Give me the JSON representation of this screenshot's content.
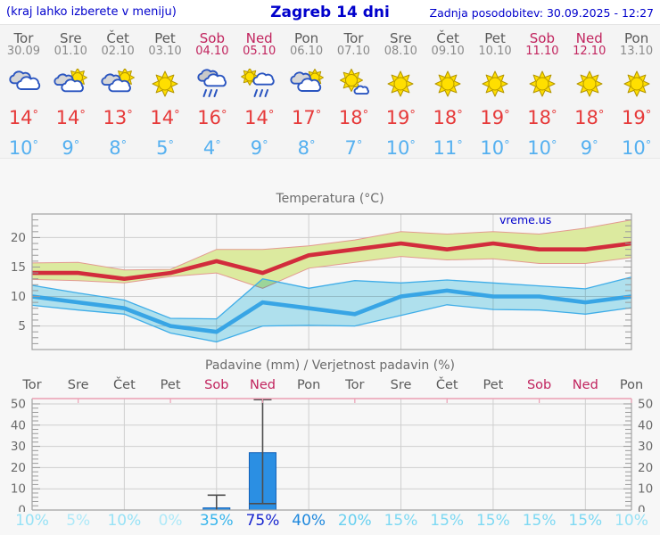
{
  "header": {
    "hint": "(kraj lahko izberete v meniju)",
    "title": "Zagreb 14 dni",
    "updated": "Zadnja posodobitev: 30.09.2025 - 12:27"
  },
  "colors": {
    "accent_blue": "#0000cc",
    "weekend": "#c1245e",
    "weekday": "#5a5a5a",
    "high_temp": "#e63a3a",
    "low_temp": "#55b0f0",
    "bar_fill": "#2b8fe3",
    "bar_edge": "#1260b8",
    "grid": "#cfcfcf",
    "frame": "#a3a3a3",
    "precip_top_border": "#eb9fb4"
  },
  "days": [
    {
      "name": "Tor",
      "date": "30.09",
      "weekend": false,
      "icon": "cloudy",
      "high": 14,
      "low": 10,
      "pop": "10%",
      "pop_color": "#97e2f6"
    },
    {
      "name": "Sre",
      "date": "01.10",
      "weekend": false,
      "icon": "sun-cloud",
      "high": 14,
      "low": 9,
      "pop": "5%",
      "pop_color": "#aee9f8"
    },
    {
      "name": "Čet",
      "date": "02.10",
      "weekend": false,
      "icon": "sun-cloud",
      "high": 13,
      "low": 8,
      "pop": "10%",
      "pop_color": "#97e2f6"
    },
    {
      "name": "Pet",
      "date": "03.10",
      "weekend": false,
      "icon": "sunny",
      "high": 14,
      "low": 5,
      "pop": "0%",
      "pop_color": "#aee9f8"
    },
    {
      "name": "Sob",
      "date": "04.10",
      "weekend": true,
      "icon": "rain",
      "high": 16,
      "low": 4,
      "pop": "35%",
      "pop_color": "#38b5ec"
    },
    {
      "name": "Ned",
      "date": "05.10",
      "weekend": true,
      "icon": "sun-rain",
      "high": 14,
      "low": 9,
      "pop": "75%",
      "pop_color": "#1826cf"
    },
    {
      "name": "Pon",
      "date": "06.10",
      "weekend": false,
      "icon": "clouds-sun",
      "high": 17,
      "low": 8,
      "pop": "40%",
      "pop_color": "#1e88dd"
    },
    {
      "name": "Tor",
      "date": "07.10",
      "weekend": false,
      "icon": "sun-small-cloud",
      "high": 18,
      "low": 7,
      "pop": "20%",
      "pop_color": "#68d0f0"
    },
    {
      "name": "Sre",
      "date": "08.10",
      "weekend": false,
      "icon": "sunny",
      "high": 19,
      "low": 10,
      "pop": "15%",
      "pop_color": "#7ed9f3"
    },
    {
      "name": "Čet",
      "date": "09.10",
      "weekend": false,
      "icon": "sunny",
      "high": 18,
      "low": 11,
      "pop": "15%",
      "pop_color": "#7ed9f3"
    },
    {
      "name": "Pet",
      "date": "10.10",
      "weekend": false,
      "icon": "sunny",
      "high": 19,
      "low": 10,
      "pop": "15%",
      "pop_color": "#7ed9f3"
    },
    {
      "name": "Sob",
      "date": "11.10",
      "weekend": true,
      "icon": "sunny",
      "high": 18,
      "low": 10,
      "pop": "15%",
      "pop_color": "#7ed9f3"
    },
    {
      "name": "Ned",
      "date": "12.10",
      "weekend": true,
      "icon": "sunny",
      "high": 18,
      "low": 9,
      "pop": "15%",
      "pop_color": "#7ed9f3"
    },
    {
      "name": "Pon",
      "date": "13.10",
      "weekend": false,
      "icon": "sunny",
      "high": 19,
      "low": 10,
      "pop": "10%",
      "pop_color": "#97e2f6"
    }
  ],
  "chart_data": [
    {
      "type": "line",
      "title": "Temperatura (°C)",
      "watermark": "vreme.us",
      "x_labels": [
        "Tor",
        "Sre",
        "Čet",
        "Pet",
        "Sob",
        "Ned",
        "Pon",
        "Tor",
        "Sre",
        "Čet",
        "Pet",
        "Sob",
        "Ned",
        "Pon"
      ],
      "ylim": [
        1,
        24
      ],
      "yticks": [
        5,
        10,
        15,
        20
      ],
      "grid_vertical_day_indices": [
        2,
        4,
        6,
        8,
        10,
        12
      ],
      "series": [
        {
          "name": "high-temp",
          "color": "#d22c3c",
          "values": [
            14,
            14,
            13,
            14,
            16,
            14,
            17,
            18,
            19,
            18,
            19,
            18,
            18,
            19
          ]
        },
        {
          "name": "low-temp",
          "color": "#38a5e5",
          "values": [
            10,
            9,
            8,
            5,
            4,
            9,
            8,
            7,
            10,
            11,
            10,
            10,
            9,
            10
          ]
        }
      ],
      "bands": [
        {
          "name": "high-range",
          "fill": "#dcea9f",
          "edge": "#e39a90",
          "upper": [
            15.7,
            15.8,
            14.5,
            14.6,
            18,
            18,
            18.6,
            19.6,
            21,
            20.6,
            21,
            20.6,
            21.6,
            23
          ],
          "lower": [
            12.9,
            12.7,
            12.3,
            13.4,
            14,
            11.4,
            14.8,
            15.8,
            16.8,
            16.2,
            16.4,
            15.6,
            15.6,
            16.6
          ]
        },
        {
          "name": "low-range",
          "fill": "#b5e8f5",
          "edge": "#3fade8",
          "upper": [
            11.9,
            10.6,
            9.4,
            6.3,
            6.2,
            13,
            11.4,
            12.7,
            12.3,
            12.8,
            12.3,
            11.8,
            11.3,
            13.3
          ],
          "lower": [
            8.5,
            7.7,
            7,
            3.8,
            2.3,
            5,
            5.1,
            5,
            6.8,
            8.6,
            7.8,
            7.7,
            7,
            8.1
          ]
        }
      ]
    },
    {
      "type": "bar",
      "title": "Padavine (mm) / Verjetnost padavin (%)",
      "x_labels": [
        "Tor",
        "Sre",
        "Čet",
        "Pet",
        "Sob",
        "Ned",
        "Pon",
        "Tor",
        "Sre",
        "Čet",
        "Pet",
        "Sob",
        "Ned",
        "Pon"
      ],
      "weekend_indices": [
        4,
        5,
        11,
        12
      ],
      "ylim": [
        0,
        52.5
      ],
      "yticks": [
        0,
        10,
        20,
        30,
        40,
        50
      ],
      "grid_vertical_day_indices": [
        2,
        4,
        6,
        8,
        10,
        12
      ],
      "bars": [
        {
          "day_index": 4,
          "value": 1,
          "whisker_low": 0,
          "whisker_high": 7
        },
        {
          "day_index": 5,
          "value": 27,
          "whisker_low": 3,
          "whisker_high": 52
        }
      ],
      "pop_labels": [
        "10%",
        "5%",
        "10%",
        "0%",
        "35%",
        "75%",
        "40%",
        "20%",
        "15%",
        "15%",
        "15%",
        "15%",
        "15%",
        "10%"
      ]
    }
  ]
}
